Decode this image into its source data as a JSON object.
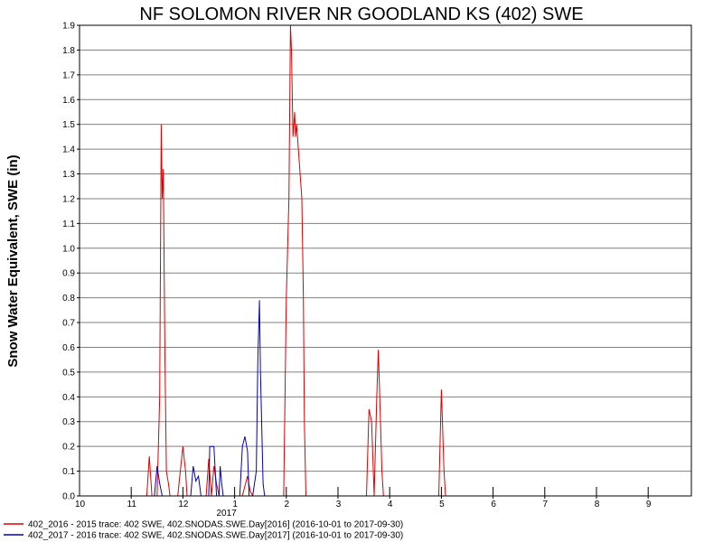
{
  "chart_data": {
    "type": "line",
    "title": "NF SOLOMON RIVER NR GOODLAND KS (402) SWE",
    "ylabel": "Snow Water Equivalent, SWE (in)",
    "ylim": [
      0,
      1.9
    ],
    "yticks": [
      "0.0",
      "0.1",
      "0.2",
      "0.3",
      "0.4",
      "0.5",
      "0.6",
      "0.7",
      "0.8",
      "0.9",
      "1.0",
      "1.1",
      "1.2",
      "1.3",
      "1.4",
      "1.5",
      "1.6",
      "1.7",
      "1.8",
      "1.9"
    ],
    "xlim": [
      0,
      12
    ],
    "xticks": [
      {
        "x": 0,
        "label": "10"
      },
      {
        "x": 1,
        "label": "11"
      },
      {
        "x": 2,
        "label": "12"
      },
      {
        "x": 3,
        "label": "1"
      },
      {
        "x": 4,
        "label": "2"
      },
      {
        "x": 5,
        "label": "3"
      },
      {
        "x": 6,
        "label": "4"
      },
      {
        "x": 7,
        "label": "5"
      },
      {
        "x": 8,
        "label": "6"
      },
      {
        "x": 9,
        "label": "7"
      },
      {
        "x": 10,
        "label": "8"
      },
      {
        "x": 11,
        "label": "9"
      }
    ],
    "year_label": {
      "x": 3,
      "label": "2017"
    },
    "grid": true,
    "legend_position": "bottom",
    "series": [
      {
        "name": "402_2016 - 2015 trace: 402 SWE, 402.SNODAS.SWE.Day[2016] (2016-10-01 to 2017-09-30)",
        "color": "#e00000",
        "points": [
          [
            1.3,
            0
          ],
          [
            1.35,
            0.16
          ],
          [
            1.4,
            0
          ],
          [
            1.5,
            0
          ],
          [
            1.55,
            0.4
          ],
          [
            1.58,
            1.5
          ],
          [
            1.6,
            1.2
          ],
          [
            1.62,
            1.32
          ],
          [
            1.65,
            0.6
          ],
          [
            1.68,
            0.1
          ],
          [
            1.72,
            0.05
          ],
          [
            1.75,
            0
          ],
          [
            1.9,
            0
          ],
          [
            1.95,
            0.1
          ],
          [
            2.0,
            0.2
          ],
          [
            2.05,
            0.1
          ],
          [
            2.08,
            0
          ],
          [
            2.45,
            0
          ],
          [
            2.5,
            0.15
          ],
          [
            2.55,
            0
          ],
          [
            2.6,
            0.12
          ],
          [
            2.65,
            0.05
          ],
          [
            2.7,
            0
          ],
          [
            3.15,
            0
          ],
          [
            3.2,
            0.04
          ],
          [
            3.25,
            0.08
          ],
          [
            3.3,
            0.02
          ],
          [
            3.35,
            0
          ],
          [
            3.95,
            0
          ],
          [
            4.0,
            0.8
          ],
          [
            4.05,
            1.2
          ],
          [
            4.08,
            1.9
          ],
          [
            4.1,
            1.8
          ],
          [
            4.13,
            1.45
          ],
          [
            4.16,
            1.55
          ],
          [
            4.18,
            1.45
          ],
          [
            4.2,
            1.5
          ],
          [
            4.25,
            1.35
          ],
          [
            4.3,
            1.2
          ],
          [
            4.33,
            0.8
          ],
          [
            4.35,
            0.3
          ],
          [
            4.38,
            0
          ],
          [
            5.55,
            0
          ],
          [
            5.6,
            0.35
          ],
          [
            5.65,
            0.3
          ],
          [
            5.7,
            0
          ],
          [
            5.75,
            0.4
          ],
          [
            5.78,
            0.59
          ],
          [
            5.8,
            0.45
          ],
          [
            5.85,
            0.1
          ],
          [
            5.88,
            0
          ],
          [
            6.95,
            0
          ],
          [
            7.0,
            0.43
          ],
          [
            7.05,
            0.1
          ],
          [
            7.08,
            0
          ]
        ]
      },
      {
        "name": "402_2017 - 2016 trace: 402 SWE, 402.SNODAS.SWE.Day[2017] (2016-10-01 to 2017-09-30)",
        "color": "#0000c0",
        "points": [
          [
            1.45,
            0
          ],
          [
            1.5,
            0.12
          ],
          [
            1.55,
            0.05
          ],
          [
            1.6,
            0
          ],
          [
            2.15,
            0
          ],
          [
            2.2,
            0.12
          ],
          [
            2.25,
            0.06
          ],
          [
            2.3,
            0.08
          ],
          [
            2.35,
            0
          ],
          [
            2.5,
            0
          ],
          [
            2.52,
            0.2
          ],
          [
            2.6,
            0.2
          ],
          [
            2.65,
            0
          ],
          [
            2.7,
            0
          ],
          [
            2.72,
            0.12
          ],
          [
            2.75,
            0.05
          ],
          [
            2.78,
            0
          ],
          [
            3.1,
            0
          ],
          [
            3.15,
            0.2
          ],
          [
            3.2,
            0.24
          ],
          [
            3.25,
            0.18
          ],
          [
            3.28,
            0
          ],
          [
            3.35,
            0
          ],
          [
            3.42,
            0.1
          ],
          [
            3.45,
            0.55
          ],
          [
            3.48,
            0.79
          ],
          [
            3.5,
            0.5
          ],
          [
            3.55,
            0.05
          ],
          [
            3.58,
            0
          ]
        ]
      }
    ]
  }
}
